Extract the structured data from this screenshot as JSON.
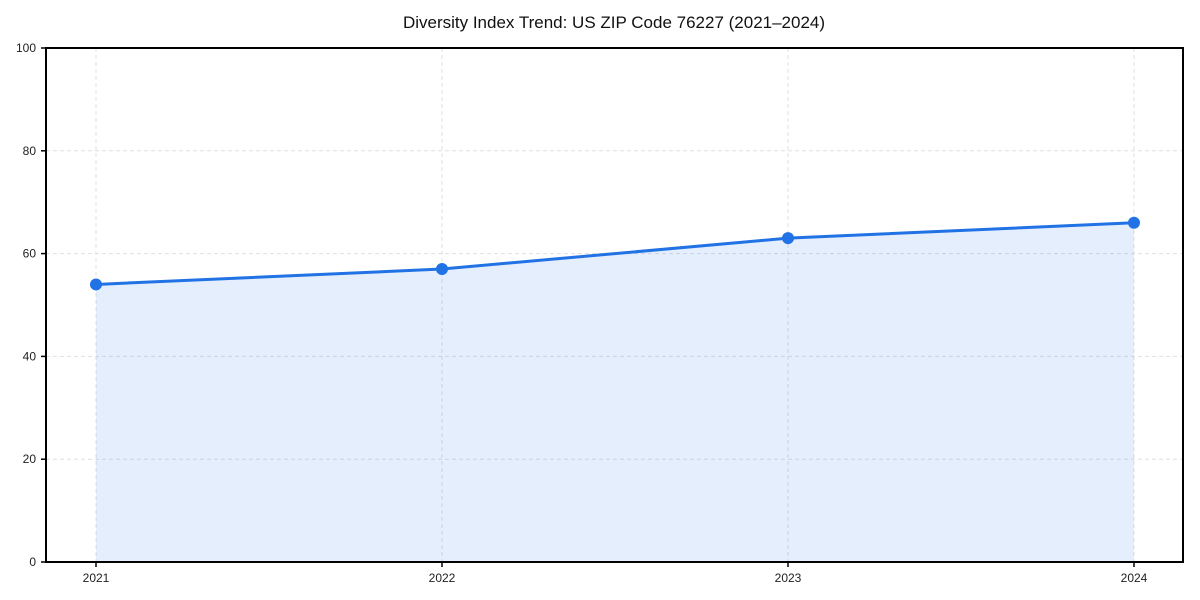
{
  "chart": {
    "title": "Diversity Index Trend: US ZIP Code 76227 (2021–2024)"
  },
  "chart_data": {
    "type": "area",
    "title": "Diversity Index Trend: US ZIP Code 76227 (2021–2024)",
    "categories": [
      "2021",
      "2022",
      "2023",
      "2024"
    ],
    "series": [
      {
        "name": "Diversity Index",
        "values": [
          54,
          57,
          63,
          66
        ]
      }
    ],
    "xlabel": "",
    "ylabel": "",
    "ylim": [
      0,
      100
    ],
    "yticks": [
      0,
      20,
      40,
      60,
      80,
      100
    ],
    "grid": true,
    "grid_style": "dashed",
    "legend": false,
    "marker": "circle",
    "colors": {
      "line": "#2172e5",
      "marker": "#2172e5",
      "area_fill": "#2172e5",
      "area_opacity": 0.12,
      "grid": "#e0e0e0",
      "axis": "#000000",
      "tick_label": "#222222",
      "title": "#111111",
      "background": "#ffffff"
    }
  }
}
